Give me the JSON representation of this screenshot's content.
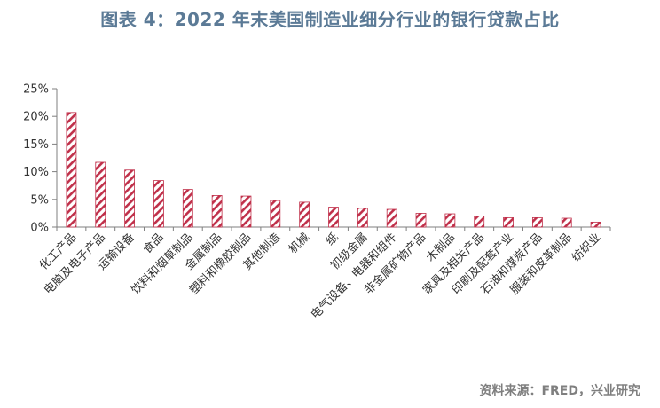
{
  "title": "图表 4：2022 年末美国制造业细分行业的银行贷款占比",
  "source": "资料来源：FRED，兴业研究",
  "colors": {
    "title": "#5b7a96",
    "bar_stripe": "#c0304a",
    "axis": "#7f7f7f",
    "source": "#7f7f7f"
  },
  "chart_data": {
    "type": "bar",
    "title": "图表 4：2022 年末美国制造业细分行业的银行贷款占比",
    "xlabel": "",
    "ylabel": "",
    "ylim": [
      0,
      25
    ],
    "yticks": [
      0,
      5,
      10,
      15,
      20,
      25
    ],
    "ytick_labels": [
      "0%",
      "5%",
      "10%",
      "15%",
      "20%",
      "25%"
    ],
    "grid": false,
    "legend": "none",
    "bar_pattern": "diagonal-hatch",
    "categories": [
      "化工产品",
      "电脑及电子产品",
      "运输设备",
      "食品",
      "饮料和烟草制品",
      "金属制品",
      "塑料和橡胶制品",
      "其他制造",
      "机械",
      "纸",
      "初级金属",
      "电气设备、电器和组件",
      "非金属矿物产品",
      "木制品",
      "家具及相关产品",
      "印刷及配套产业",
      "石油和煤炭产品",
      "服装和皮革制品",
      "纺织业"
    ],
    "values": [
      20.7,
      11.7,
      10.3,
      8.4,
      6.8,
      5.7,
      5.6,
      4.8,
      4.5,
      3.6,
      3.4,
      3.2,
      2.5,
      2.4,
      2.0,
      1.7,
      1.7,
      1.6,
      0.9
    ]
  }
}
